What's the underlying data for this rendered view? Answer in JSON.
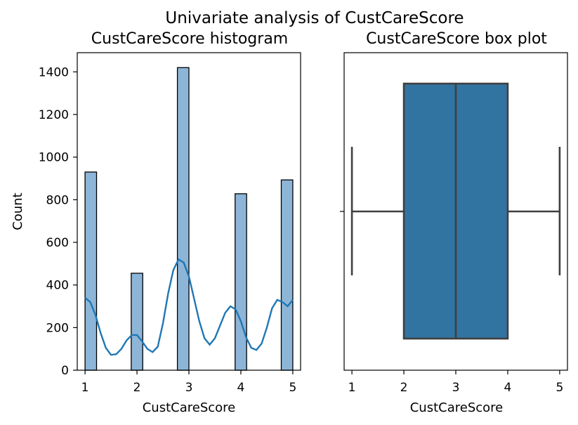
{
  "figure": {
    "suptitle": "Univariate analysis of CustCareScore"
  },
  "chart_data": [
    {
      "type": "bar",
      "title": "CustCareScore histogram",
      "xlabel": "CustCareScore",
      "ylabel": "Count",
      "xlim": [
        0.85,
        5.15
      ],
      "ylim": [
        0,
        1490
      ],
      "xticks": [
        1,
        2,
        3,
        4,
        5
      ],
      "yticks": [
        0,
        200,
        400,
        600,
        800,
        1000,
        1200,
        1400
      ],
      "bins": [
        {
          "x0": 1.0,
          "x1": 1.222,
          "value": 930
        },
        {
          "x0": 1.222,
          "x1": 1.444,
          "value": 0
        },
        {
          "x0": 1.444,
          "x1": 1.667,
          "value": 0
        },
        {
          "x0": 1.667,
          "x1": 1.889,
          "value": 0
        },
        {
          "x0": 1.889,
          "x1": 2.111,
          "value": 455
        },
        {
          "x0": 2.111,
          "x1": 2.333,
          "value": 0
        },
        {
          "x0": 2.333,
          "x1": 2.556,
          "value": 0
        },
        {
          "x0": 2.556,
          "x1": 2.778,
          "value": 0
        },
        {
          "x0": 2.778,
          "x1": 3.0,
          "value": 1420
        },
        {
          "x0": 3.0,
          "x1": 3.222,
          "value": 0
        },
        {
          "x0": 3.222,
          "x1": 3.444,
          "value": 0
        },
        {
          "x0": 3.444,
          "x1": 3.667,
          "value": 0
        },
        {
          "x0": 3.667,
          "x1": 3.889,
          "value": 0
        },
        {
          "x0": 3.889,
          "x1": 4.111,
          "value": 828
        },
        {
          "x0": 4.111,
          "x1": 4.333,
          "value": 0
        },
        {
          "x0": 4.333,
          "x1": 4.556,
          "value": 0
        },
        {
          "x0": 4.556,
          "x1": 4.778,
          "value": 0
        },
        {
          "x0": 4.778,
          "x1": 5.0,
          "value": 893
        }
      ],
      "kde": {
        "x": [
          1.0,
          1.1,
          1.2,
          1.3,
          1.4,
          1.5,
          1.6,
          1.7,
          1.8,
          1.9,
          2.0,
          2.1,
          2.2,
          2.3,
          2.4,
          2.5,
          2.6,
          2.7,
          2.8,
          2.9,
          3.0,
          3.1,
          3.2,
          3.3,
          3.4,
          3.5,
          3.6,
          3.7,
          3.8,
          3.9,
          4.0,
          4.1,
          4.2,
          4.3,
          4.4,
          4.5,
          4.6,
          4.7,
          4.8,
          4.9,
          5.0
        ],
        "y": [
          340,
          320,
          260,
          175,
          105,
          72,
          75,
          100,
          140,
          165,
          165,
          135,
          100,
          85,
          110,
          220,
          360,
          470,
          520,
          505,
          440,
          335,
          230,
          150,
          120,
          150,
          210,
          270,
          300,
          285,
          230,
          155,
          105,
          95,
          125,
          200,
          290,
          330,
          320,
          300,
          330
        ],
        "color": "#1f77b4"
      },
      "bar_color": "#8db5d8"
    },
    {
      "type": "box",
      "title": "CustCareScore box plot",
      "xlabel": "CustCareScore",
      "xlim": [
        0.85,
        5.15
      ],
      "xticks": [
        1,
        2,
        3,
        4,
        5
      ],
      "whisker_low": 1,
      "q1": 2,
      "median": 3,
      "q3": 4,
      "whisker_high": 5,
      "box_color": "#3274a1",
      "line_color": "#3f3f3f"
    }
  ]
}
